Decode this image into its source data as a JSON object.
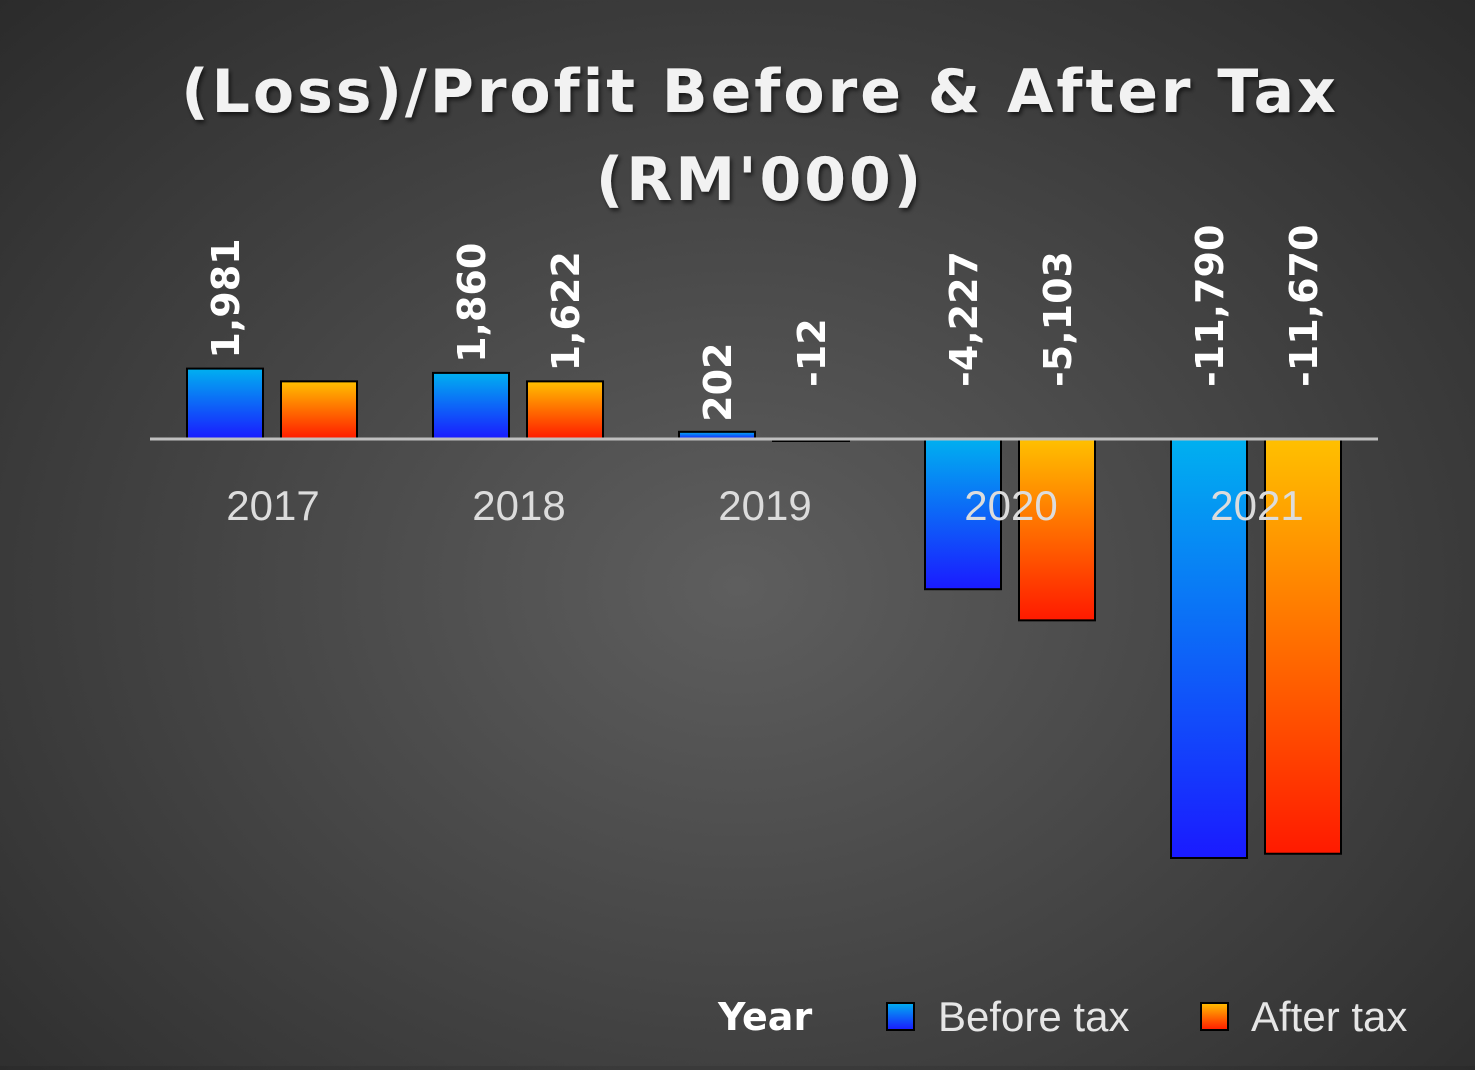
{
  "chart_data": {
    "type": "bar",
    "title": "(Loss)/Profit Before & After Tax",
    "subtitle": "(RM'000)",
    "categories": [
      "2017",
      "2018",
      "2019",
      "2020",
      "2021"
    ],
    "series": [
      {
        "name": "Before tax",
        "values": [
          1981,
          1860,
          202,
          -4227,
          -11790
        ],
        "labels": [
          "1,981",
          "1,860",
          "202",
          "-4,227",
          "-11,790"
        ]
      },
      {
        "name": "After tax",
        "values": [
          1622,
          1622,
          -12,
          -5103,
          -11670
        ],
        "labels": [
          "",
          "1,622",
          "-12",
          "-5,103",
          "-11,670"
        ]
      }
    ],
    "legend_title": "Year",
    "legend_position": "bottom-right",
    "ylim": [
      -11790,
      1981
    ],
    "grid": false
  },
  "colors": {
    "before_top": "#00b0f0",
    "before_bottom": "#1a1aff",
    "after_top": "#ffc000",
    "after_bottom": "#ff1a00",
    "axis": "#bfbfbf"
  }
}
